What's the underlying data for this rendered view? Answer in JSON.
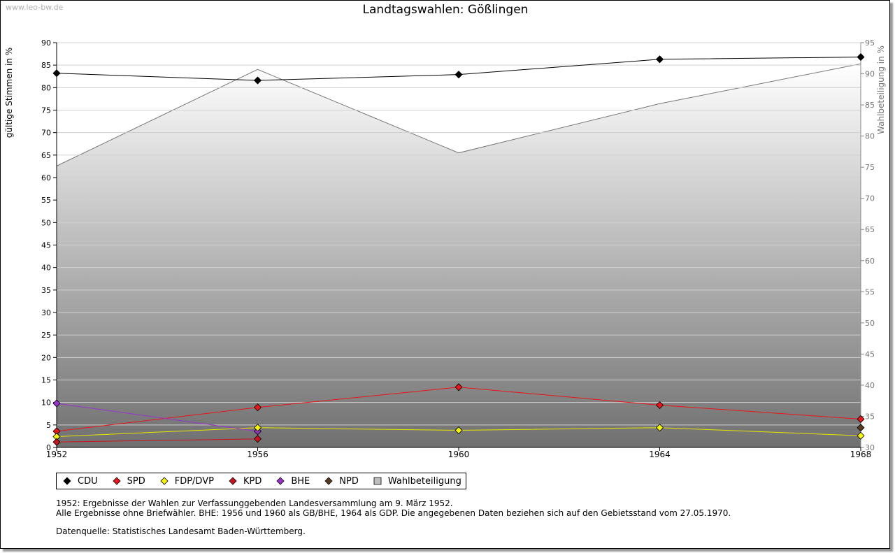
{
  "watermark": "www.leo-bw.de",
  "chart_data": {
    "type": "line",
    "title": "Landtagswahlen: Gößlingen",
    "x": [
      1952,
      1956,
      1960,
      1964,
      1968
    ],
    "x_tick_labels": [
      "1952",
      "1956",
      "1960",
      "1964",
      "1968"
    ],
    "ylabel": "gültige Stimmen in %",
    "ylim": [
      0,
      90
    ],
    "y_ticks": [
      0,
      5,
      10,
      15,
      20,
      25,
      30,
      35,
      40,
      45,
      50,
      55,
      60,
      65,
      70,
      75,
      80,
      85,
      90
    ],
    "y2label": "Wahlbeteiligung in %",
    "y2lim": [
      30,
      95
    ],
    "y2_ticks": [
      30,
      35,
      40,
      45,
      50,
      55,
      60,
      65,
      70,
      75,
      80,
      85,
      90,
      95
    ],
    "grid": true,
    "legend_position": "bottom-left",
    "series": [
      {
        "name": "CDU",
        "color": "#000000",
        "values": [
          83.2,
          81.6,
          82.9,
          86.3,
          86.8
        ]
      },
      {
        "name": "SPD",
        "color": "#e8161a",
        "values": [
          3.6,
          8.9,
          13.4,
          9.4,
          6.3
        ]
      },
      {
        "name": "FDP/DVP",
        "color": "#f5f50a",
        "values": [
          2.4,
          4.4,
          3.8,
          4.4,
          2.6
        ]
      },
      {
        "name": "KPD",
        "color": "#c8141e",
        "values": [
          1.2,
          1.9,
          null,
          null,
          null
        ]
      },
      {
        "name": "BHE",
        "color": "#9a33cc",
        "values": [
          9.8,
          3.6,
          null,
          null,
          null
        ]
      },
      {
        "name": "NPD",
        "color": "#5a3b22",
        "values": [
          null,
          null,
          null,
          null,
          4.4
        ]
      },
      {
        "name": "Wahlbeteiligung",
        "color": "#a8a8a8",
        "axis": "right",
        "type": "area",
        "values": [
          75.2,
          90.7,
          77.3,
          85.2,
          91.6
        ]
      }
    ]
  },
  "notes": [
    "1952: Ergebnisse der Wahlen zur Verfassunggebenden Landesversammlung am 9. März 1952.",
    "Alle Ergebnisse ohne Briefwähler. BHE: 1956 und 1960 als GB/BHE, 1964 als GDP. Die angegebenen Daten beziehen sich auf den Gebietsstand vom 27.05.1970."
  ],
  "source": "Datenquelle: Statistisches Landesamt Baden-Württemberg."
}
